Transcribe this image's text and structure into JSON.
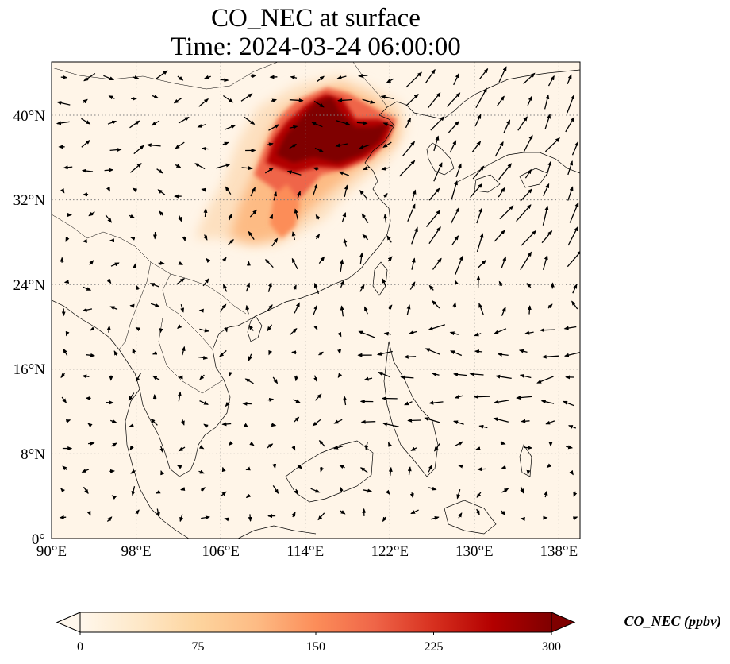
{
  "title": {
    "line1": "CO_NEC at surface",
    "line2": "Time: 2024-03-24 06:00:00"
  },
  "map": {
    "lon_range": [
      90,
      140
    ],
    "lat_range": [
      0,
      40
    ],
    "x_ticks": [
      "90°E",
      "98°E",
      "106°E",
      "114°E",
      "122°E",
      "130°E",
      "138°E"
    ],
    "y_ticks": [
      "0°",
      "8°N",
      "16°N",
      "24°N",
      "32°N",
      "40°N"
    ],
    "gridlines": "dotted"
  },
  "colorbar": {
    "label": "CO_NEC (ppbv)",
    "ticks": [
      "0",
      "75",
      "150",
      "225",
      "300"
    ],
    "range": [
      0,
      300
    ],
    "extend": "both",
    "colormap": [
      "#fff7ec",
      "#fee8c8",
      "#fdd49e",
      "#fdbb84",
      "#fc8d59",
      "#ef6548",
      "#d7301f",
      "#b30000",
      "#7f0000"
    ]
  }
}
